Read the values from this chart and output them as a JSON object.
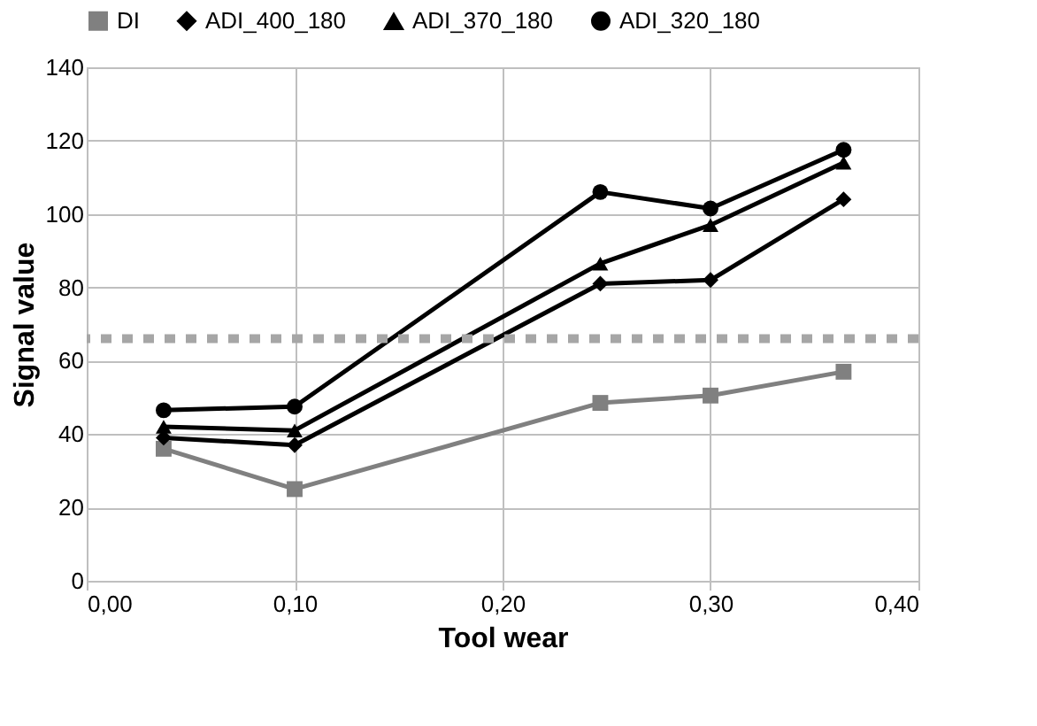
{
  "chart_data": {
    "type": "line",
    "xlabel": "Tool wear",
    "ylabel": "Signal value",
    "x": [
      0.037,
      0.1,
      0.247,
      0.3,
      0.364
    ],
    "series": [
      {
        "name": "DI",
        "color": "#808080",
        "marker": "square",
        "values": [
          36,
          25,
          48.5,
          50.5,
          57
        ]
      },
      {
        "name": "ADI_400_180",
        "color": "#000000",
        "marker": "diamond",
        "values": [
          39,
          37,
          81,
          82,
          104
        ]
      },
      {
        "name": "ADI_370_180",
        "color": "#000000",
        "marker": "triangle",
        "values": [
          42,
          41,
          86.5,
          97,
          114
        ]
      },
      {
        "name": "ADI_320_180",
        "color": "#000000",
        "marker": "circle",
        "values": [
          46.5,
          47.5,
          106,
          101.5,
          117.5
        ]
      }
    ],
    "xlim": [
      0,
      0.4
    ],
    "xticks": [
      {
        "value": 0,
        "label": "0,00"
      },
      {
        "value": 0.1,
        "label": "0,10"
      },
      {
        "value": 0.2,
        "label": "0,20"
      },
      {
        "value": 0.3,
        "label": "0,30"
      },
      {
        "value": 0.4,
        "label": "0,40"
      }
    ],
    "ylim": [
      0,
      140
    ],
    "yticks": [
      0,
      20,
      40,
      60,
      80,
      100,
      120,
      140
    ],
    "ref_lines": [
      {
        "axis": "y",
        "value": 66,
        "color": "#a6a6a6",
        "line_style": "dotted"
      }
    ],
    "grid": true,
    "legend": "top",
    "line_style": "solid"
  }
}
